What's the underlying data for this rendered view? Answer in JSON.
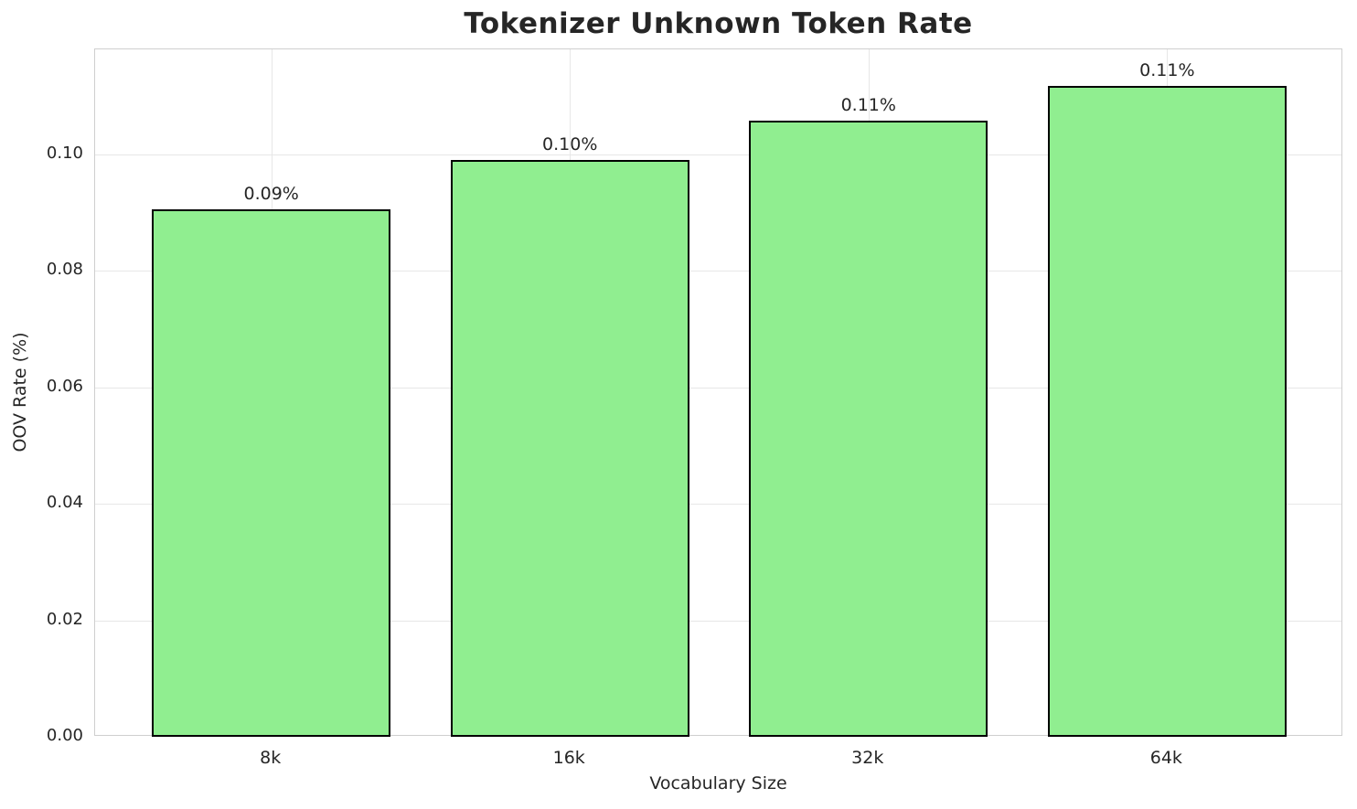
{
  "chart_data": {
    "type": "bar",
    "title": "Tokenizer Unknown Token Rate",
    "xlabel": "Vocabulary Size",
    "ylabel": "OOV Rate (%)",
    "categories": [
      "8k",
      "16k",
      "32k",
      "64k"
    ],
    "values": [
      0.0905,
      0.099,
      0.1057,
      0.1117
    ],
    "bar_labels": [
      "0.09%",
      "0.10%",
      "0.11%",
      "0.11%"
    ],
    "ytick_labels": [
      "0.00",
      "0.02",
      "0.04",
      "0.06",
      "0.08",
      "0.10"
    ],
    "yticks": [
      0.0,
      0.02,
      0.04,
      0.06,
      0.08,
      0.1
    ],
    "ylim": [
      0,
      0.118
    ],
    "grid": true,
    "legend_position": "none",
    "bar_color": "#90EE90",
    "bar_edge_color": "#000000",
    "grid_color": "#e7e7e7",
    "spine_color": "#cfcfcf",
    "text_color": "#262626"
  }
}
